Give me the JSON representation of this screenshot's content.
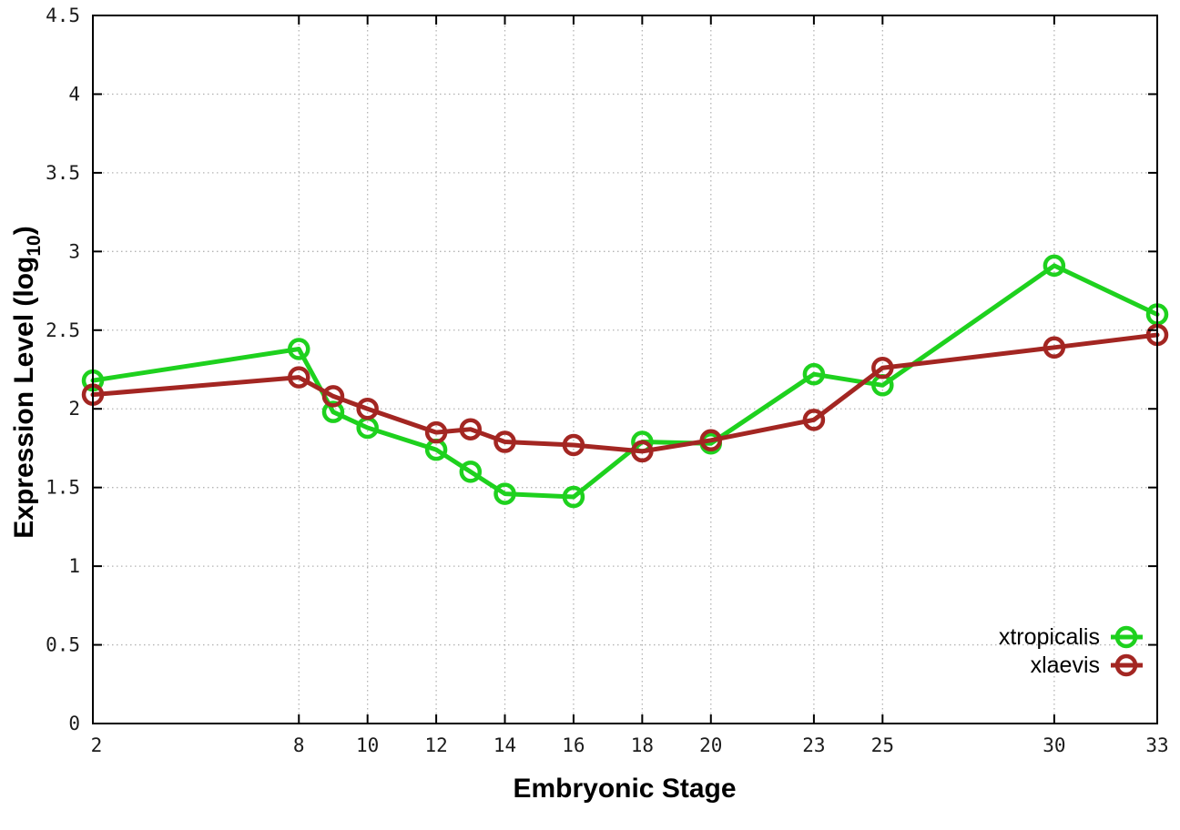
{
  "chart_data": {
    "type": "line",
    "title": "",
    "xlabel": "Embryonic Stage",
    "ylabel": {
      "main": "Expression Level (log",
      "sub": "10",
      "end": ")"
    },
    "xlim": [
      2,
      33
    ],
    "ylim": [
      0,
      4.5
    ],
    "x_ticks": [
      2,
      8,
      10,
      12,
      14,
      16,
      18,
      20,
      23,
      25,
      30,
      33
    ],
    "y_ticks": [
      0,
      0.5,
      1,
      1.5,
      2,
      2.5,
      3,
      3.5,
      4,
      4.5
    ],
    "grid": true,
    "legend_position": "bottom-right-inside",
    "x": [
      2,
      8,
      9,
      10,
      12,
      13,
      14,
      16,
      18,
      20,
      23,
      25,
      30,
      33
    ],
    "series": [
      {
        "name": "xtropicalis",
        "color": "#1ed11e",
        "values": [
          2.18,
          2.38,
          1.98,
          1.88,
          1.74,
          1.6,
          1.46,
          1.44,
          1.79,
          1.78,
          2.22,
          2.15,
          2.91,
          2.6
        ]
      },
      {
        "name": "xlaevis",
        "color": "#a32622",
        "values": [
          2.09,
          2.2,
          2.08,
          2.0,
          1.85,
          1.87,
          1.79,
          1.77,
          1.73,
          1.8,
          1.93,
          2.26,
          2.39,
          2.47
        ]
      }
    ],
    "colors": {
      "grid": "#b4b4b4",
      "axis": "#000000"
    }
  }
}
